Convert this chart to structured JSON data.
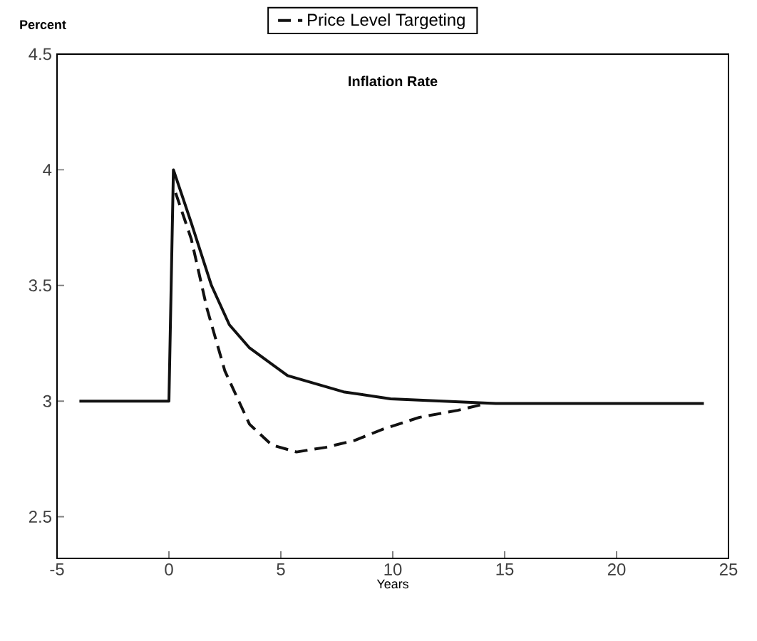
{
  "chart_data": {
    "type": "line",
    "title": "Inflation Rate",
    "xlabel": "Years",
    "ylabel": "Percent",
    "xlim": [
      -5,
      25
    ],
    "ylim": [
      2.32,
      4.5
    ],
    "xticks": [
      -5,
      0,
      5,
      10,
      15,
      20,
      25
    ],
    "yticks": [
      2.5,
      3,
      3.5,
      4,
      4.5
    ],
    "legend": "top",
    "grid": false,
    "series": [
      {
        "color": "#111111",
        "line_style": "solid",
        "x": [
          -4,
          0,
          0.2,
          1.0,
          1.9,
          2.7,
          3.6,
          5.3,
          7.8,
          9.9,
          14.6,
          23.9
        ],
        "values": [
          3,
          3,
          4.0,
          3.77,
          3.5,
          3.33,
          3.23,
          3.11,
          3.04,
          3.01,
          2.99,
          2.99
        ]
      },
      {
        "name": "Price Level Targeting",
        "color": "#111111",
        "line_style": "dashed",
        "x": [
          0.3,
          1.0,
          1.7,
          2.5,
          3.6,
          4.6,
          5.7,
          7.0,
          8.3,
          9.6,
          11.2,
          12.9,
          14.2
        ],
        "values": [
          3.9,
          3.7,
          3.4,
          3.13,
          2.9,
          2.81,
          2.78,
          2.8,
          2.83,
          2.88,
          2.93,
          2.96,
          2.99
        ]
      }
    ]
  }
}
